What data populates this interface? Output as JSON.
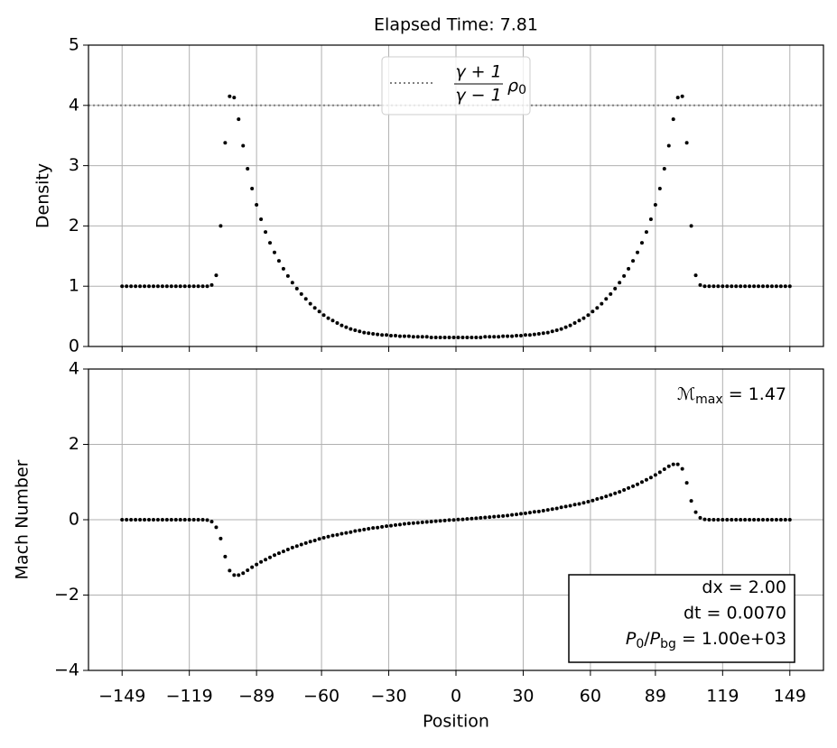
{
  "chart_data": [
    {
      "type": "scatter",
      "title": "Elapsed Time: 7.81",
      "ylabel": "Density",
      "color": "#000000",
      "grid": true,
      "xlim": [
        -164,
        164
      ],
      "ylim": [
        0,
        5
      ],
      "xticks": [
        -149,
        -119,
        -89,
        -60,
        -30,
        0,
        30,
        60,
        89,
        119,
        149
      ],
      "yticks": [
        0,
        1,
        2,
        3,
        4,
        5
      ],
      "hline": {
        "value": 4,
        "color": "#808080"
      },
      "legend": {
        "loc": "upper center",
        "numerator": "γ + 1",
        "denominator": "γ − 1",
        "symbol": "ρ",
        "subscript": "0"
      },
      "x": [
        -149,
        -147,
        -145,
        -143,
        -141,
        -139,
        -137,
        -135,
        -133,
        -131,
        -129,
        -127,
        -125,
        -123,
        -121,
        -119,
        -117,
        -115,
        -113,
        -111,
        -109,
        -107,
        -105,
        -103,
        -101,
        -99,
        -97,
        -95,
        -93,
        -91,
        -89,
        -87,
        -85,
        -83,
        -81,
        -79,
        -77,
        -75,
        -73,
        -71,
        -69,
        -67,
        -65,
        -63,
        -61,
        -59,
        -57,
        -55,
        -53,
        -51,
        -49,
        -47,
        -45,
        -43,
        -41,
        -39,
        -37,
        -35,
        -33,
        -31,
        -29,
        -27,
        -25,
        -23,
        -21,
        -19,
        -17,
        -15,
        -13,
        -11,
        -9,
        -7,
        -5,
        -3,
        -1,
        1,
        3,
        5,
        7,
        9,
        11,
        13,
        15,
        17,
        19,
        21,
        23,
        25,
        27,
        29,
        31,
        33,
        35,
        37,
        39,
        41,
        43,
        45,
        47,
        49,
        51,
        53,
        55,
        57,
        59,
        61,
        63,
        65,
        67,
        69,
        71,
        73,
        75,
        77,
        79,
        81,
        83,
        85,
        87,
        89,
        91,
        93,
        95,
        97,
        99,
        101,
        103,
        105,
        107,
        109,
        111,
        113,
        115,
        117,
        119,
        121,
        123,
        125,
        127,
        129,
        131,
        133,
        135,
        137,
        139,
        141,
        143,
        145,
        147,
        149
      ],
      "values": [
        1,
        1,
        1,
        1,
        1,
        1,
        1,
        1,
        1,
        1,
        1,
        1,
        1,
        1,
        1,
        1,
        1,
        1,
        1,
        1,
        1.02,
        1.18,
        2.0,
        3.38,
        4.15,
        4.13,
        3.77,
        3.33,
        2.95,
        2.62,
        2.35,
        2.11,
        1.9,
        1.72,
        1.56,
        1.42,
        1.29,
        1.17,
        1.06,
        0.96,
        0.87,
        0.79,
        0.71,
        0.64,
        0.58,
        0.52,
        0.47,
        0.43,
        0.39,
        0.35,
        0.32,
        0.29,
        0.27,
        0.25,
        0.23,
        0.22,
        0.21,
        0.2,
        0.19,
        0.19,
        0.18,
        0.18,
        0.17,
        0.17,
        0.17,
        0.16,
        0.16,
        0.16,
        0.16,
        0.15,
        0.15,
        0.15,
        0.15,
        0.15,
        0.15,
        0.15,
        0.15,
        0.15,
        0.15,
        0.15,
        0.15,
        0.16,
        0.16,
        0.16,
        0.16,
        0.17,
        0.17,
        0.17,
        0.18,
        0.18,
        0.19,
        0.19,
        0.2,
        0.21,
        0.22,
        0.23,
        0.25,
        0.27,
        0.29,
        0.32,
        0.35,
        0.39,
        0.43,
        0.47,
        0.52,
        0.58,
        0.64,
        0.71,
        0.79,
        0.87,
        0.96,
        1.06,
        1.17,
        1.29,
        1.42,
        1.56,
        1.72,
        1.9,
        2.11,
        2.35,
        2.62,
        2.95,
        3.33,
        3.77,
        4.13,
        4.15,
        3.38,
        2.0,
        1.18,
        1.02,
        1,
        1,
        1,
        1,
        1,
        1,
        1,
        1,
        1,
        1,
        1,
        1,
        1,
        1,
        1,
        1,
        1,
        1,
        1,
        1
      ]
    },
    {
      "type": "scatter",
      "xlabel": "Position",
      "ylabel": "Mach Number",
      "color": "#000000",
      "grid": true,
      "xlim": [
        -164,
        164
      ],
      "ylim": [
        -4,
        4
      ],
      "xticks": [
        {
          "value": -149,
          "label": "−149"
        },
        {
          "value": -119,
          "label": "−119"
        },
        {
          "value": -89,
          "label": "−89"
        },
        {
          "value": -60,
          "label": "−60"
        },
        {
          "value": -30,
          "label": "−30"
        },
        0,
        30,
        60,
        89,
        119,
        149
      ],
      "yticks": [
        {
          "value": -4,
          "label": "−4"
        },
        {
          "value": -2,
          "label": "−2"
        },
        0,
        2,
        4
      ],
      "annotation": [
        {
          "text": "ℳ"
        },
        {
          "text": "max",
          "sub": true
        },
        {
          "text": " = 1.47"
        }
      ],
      "info_box": [
        [
          {
            "text": "dx = 2.00"
          }
        ],
        [
          {
            "text": "dt = 0.0070"
          }
        ],
        [
          {
            "text": "P",
            "italic": true
          },
          {
            "text": "0",
            "sub": true
          },
          {
            "text": "/"
          },
          {
            "text": "P",
            "italic": true
          },
          {
            "text": "bg",
            "sub": true
          },
          {
            "text": " = 1.00e+03"
          }
        ]
      ],
      "x": [
        -149,
        -147,
        -145,
        -143,
        -141,
        -139,
        -137,
        -135,
        -133,
        -131,
        -129,
        -127,
        -125,
        -123,
        -121,
        -119,
        -117,
        -115,
        -113,
        -111,
        -109,
        -107,
        -105,
        -103,
        -101,
        -99,
        -97,
        -95,
        -93,
        -91,
        -89,
        -87,
        -85,
        -83,
        -81,
        -79,
        -77,
        -75,
        -73,
        -71,
        -69,
        -67,
        -65,
        -63,
        -61,
        -59,
        -57,
        -55,
        -53,
        -51,
        -49,
        -47,
        -45,
        -43,
        -41,
        -39,
        -37,
        -35,
        -33,
        -31,
        -29,
        -27,
        -25,
        -23,
        -21,
        -19,
        -17,
        -15,
        -13,
        -11,
        -9,
        -7,
        -5,
        -3,
        -1,
        1,
        3,
        5,
        7,
        9,
        11,
        13,
        15,
        17,
        19,
        21,
        23,
        25,
        27,
        29,
        31,
        33,
        35,
        37,
        39,
        41,
        43,
        45,
        47,
        49,
        51,
        53,
        55,
        57,
        59,
        61,
        63,
        65,
        67,
        69,
        71,
        73,
        75,
        77,
        79,
        81,
        83,
        85,
        87,
        89,
        91,
        93,
        95,
        97,
        99,
        101,
        103,
        105,
        107,
        109,
        111,
        113,
        115,
        117,
        119,
        121,
        123,
        125,
        127,
        129,
        131,
        133,
        135,
        137,
        139,
        141,
        143,
        145,
        147,
        149
      ],
      "values": [
        0,
        0,
        0,
        0,
        0,
        0,
        0,
        0,
        0,
        0,
        0,
        0,
        0,
        0,
        0,
        0,
        0,
        0,
        0,
        -0.01,
        -0.05,
        -0.2,
        -0.5,
        -0.98,
        -1.35,
        -1.47,
        -1.47,
        -1.42,
        -1.34,
        -1.26,
        -1.19,
        -1.12,
        -1.06,
        -1.0,
        -0.94,
        -0.89,
        -0.84,
        -0.79,
        -0.74,
        -0.7,
        -0.66,
        -0.62,
        -0.58,
        -0.55,
        -0.51,
        -0.48,
        -0.45,
        -0.42,
        -0.4,
        -0.37,
        -0.35,
        -0.33,
        -0.3,
        -0.28,
        -0.26,
        -0.24,
        -0.22,
        -0.21,
        -0.19,
        -0.17,
        -0.16,
        -0.14,
        -0.13,
        -0.11,
        -0.1,
        -0.09,
        -0.08,
        -0.07,
        -0.06,
        -0.05,
        -0.04,
        -0.03,
        -0.02,
        -0.01,
        -0.005,
        0.005,
        0.01,
        0.02,
        0.03,
        0.04,
        0.05,
        0.06,
        0.07,
        0.08,
        0.09,
        0.1,
        0.11,
        0.13,
        0.14,
        0.16,
        0.17,
        0.19,
        0.21,
        0.22,
        0.24,
        0.26,
        0.28,
        0.3,
        0.33,
        0.35,
        0.37,
        0.4,
        0.42,
        0.45,
        0.48,
        0.51,
        0.55,
        0.58,
        0.62,
        0.66,
        0.7,
        0.74,
        0.79,
        0.84,
        0.89,
        0.94,
        1.0,
        1.06,
        1.12,
        1.19,
        1.26,
        1.34,
        1.42,
        1.47,
        1.47,
        1.35,
        0.98,
        0.5,
        0.2,
        0.05,
        0.01,
        0,
        0,
        0,
        0,
        0,
        0,
        0,
        0,
        0,
        0,
        0,
        0,
        0,
        0,
        0,
        0,
        0,
        0,
        0
      ]
    }
  ]
}
